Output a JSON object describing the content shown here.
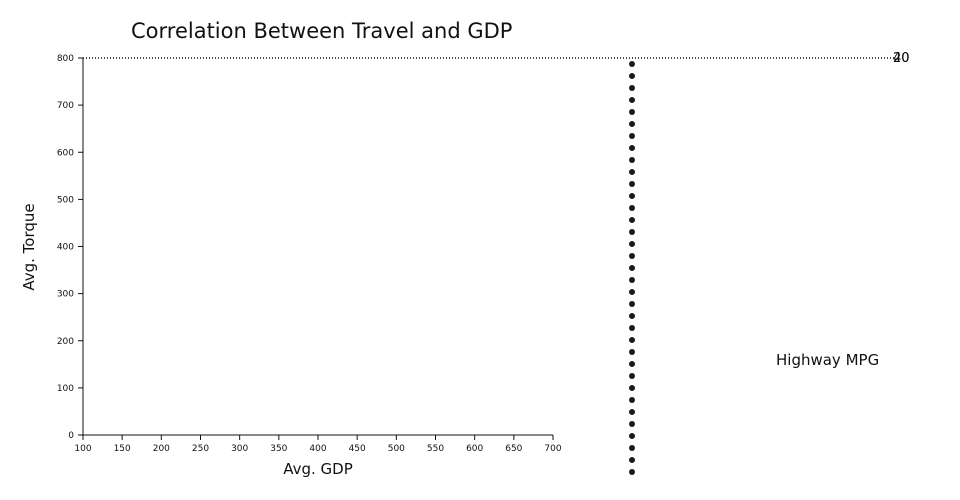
{
  "chart_data": {
    "type": "scatter",
    "title": "Correlation Between Travel and GDP",
    "xlabel": "Avg. GDP",
    "ylabel": "Avg. Torque",
    "xlim": [
      100,
      700
    ],
    "ylim": [
      0,
      800
    ],
    "x_ticks": [
      "100",
      "150",
      "200",
      "250",
      "300",
      "350",
      "400",
      "450",
      "500",
      "550",
      "600",
      "650",
      "700"
    ],
    "y_ticks": [
      "0",
      "100",
      "200",
      "300",
      "400",
      "500",
      "600",
      "700",
      "800"
    ],
    "grid": false,
    "legend_title": "Highway MPG",
    "reference_line_labels": [
      "20",
      "40"
    ],
    "dot_column_count": 35
  }
}
